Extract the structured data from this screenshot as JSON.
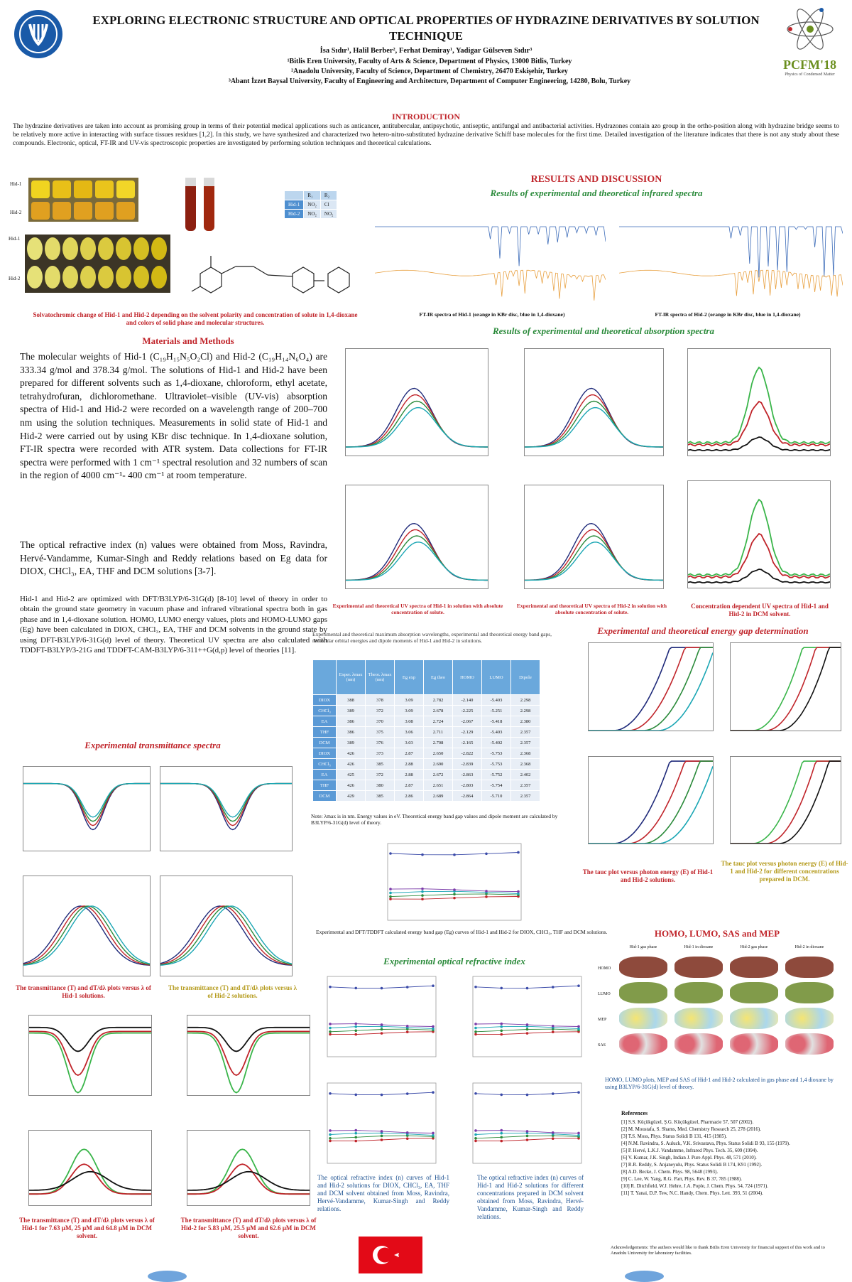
{
  "header": {
    "title": "EXPLORING ELECTRONIC STRUCTURE AND OPTICAL PROPERTIES OF HYDRAZINE DERIVATIVES BY SOLUTION TECHNIQUE",
    "authors": "İsa Sıdır¹, Halil Berber², Ferhat Demiray¹, Yadigar Gülseven Sıdır³",
    "affiliations": [
      "¹Bitlis Eren University, Faculty of Arts & Science, Department of Physics, 13000 Bitlis, Turkey",
      "²Anadolu University, Faculty of Science, Department of Chemistry, 26470 Eskişehir, Turkey",
      "³Abant İzzet Baysal University, Faculty of Engineering and Architecture, Department of Computer Engineering, 14280, Bolu, Turkey"
    ],
    "conference_logo_text": "PCFM'18",
    "conference_logo_sub": "Physics of Condensed Matter"
  },
  "introduction": {
    "heading": "INTRODUCTION",
    "text": "The hydrazine derivatives are taken into account as promising group in terms of their potential medical applications such as anticancer, antitubercular, antipsychotic, antiseptic, antifungal and antibacterial activities. Hydrazones contain azo group in the ortho-position along with hydrazine bridge seems to be relatively more active in interacting with surface tissues residues [1,2]. In this study, we have synthesized and characterized two hetero-nitro-substituted hydrazine derivative Schiff base molecules for the first time. Detailed investigation of the literature indicates that there is not any study about these compounds. Electronic, optical, FT-IR and UV-vis spectroscopic properties are investigated by performing solution techniques and theoretical calculations."
  },
  "solvato": {
    "caption": "Solvatochromic change of Hid-1 and Hid-2 depending on the solvent polarity and concentration of solute in 1,4-dioxane and colors of solid phase and molecular structures.",
    "row_labels": [
      "Hid-1",
      "Hid-2"
    ],
    "rtable": {
      "header": [
        "",
        "R₁",
        "R₂"
      ],
      "rows": [
        [
          "Hid-1",
          "NO₂",
          "Cl"
        ],
        [
          "Hid-2",
          "NO₂",
          "NO₂"
        ]
      ]
    }
  },
  "materials": {
    "heading": "Materials and Methods",
    "p1": "The molecular weights of Hid-1 (C₁₉H₁₅N₅O₂Cl) and Hid-2 (C₁₉H₁₄N₆O₄) are 333.34 g/mol and 378.34 g/mol. The solutions of Hid-1 and Hid-2 have been prepared for different solvents such as 1,4-dioxane, chloroform, ethyl acetate, tetrahydrofuran, dichloromethane. Ultraviolet–visible (UV-vis) absorption spectra of Hid-1 and Hid-2 were recorded on a wavelength range of 200–700 nm using the solution techniques. Measurements in solid state of Hid-1 and Hid-2 were carried out by using KBr disc technique. In 1,4-dioxane solution, FT-IR spectra were recorded with ATR system. Data collections for FT-IR spectra were performed with 1 cm⁻¹ spectral resolution and 32 numbers of scan in the region of 4000 cm⁻¹- 400 cm⁻¹ at room temperature.",
    "p2": "The optical refractive index (n) values were obtained from Moss, Ravindra, Hervé-Vandamme, Kumar-Singh and Reddy relations based on Eg data for DIOX, CHCl₃, EA, THF and DCM solutions [3-7].",
    "p3": "Hid-1 and Hid-2 are optimized with DFT/B3LYP/6-31G(d) [8-10] level of theory in order to obtain the ground state geometry in vacuum phase and infrared vibrational spectra both in gas phase and in 1,4-dioxane solution. HOMO, LUMO energy values, plots and HOMO-LUMO gaps (Eg) have been calculated in DIOX, CHCl₃, EA, THF and DCM solvents in the ground state by using DFT-B3LYP/6-31G(d) level of theory. Theoretical UV spectra are also calculated with TDDFT-B3LYP/3-21G and TDDFT-CAM-B3LYP/6-311++G(d,p) level of theories [11]."
  },
  "transmittance": {
    "heading": "Experimental transmittance spectra",
    "cap1": "The transmittance (T) and dT/dλ plots versus λ of Hid-1 solutions.",
    "cap2": "The transmittance (T) and dT/dλ plots versus λ of Hid-2 solutions.",
    "cap3": "The transmittance (T) and dT/dλ plots versus λ of Hid-1 for 7.63 µM, 25 µM and 64.8 µM in DCM solvent.",
    "cap4": "The transmittance (T) and dT/dλ plots versus λ of Hid-2 for 5.83 µM, 25.5 µM and 62.6 µM in DCM solvent."
  },
  "results": {
    "heading": "RESULTS AND DISCUSSION",
    "ir_heading": "Results of experimental and theoretical infrared spectra",
    "ir_cap1": "FT-IR spectra of Hid-1 (orange in KBr disc, blue in 1,4-dioxane)",
    "ir_cap2": "FT-IR spectra of Hid-2 (orange in KBr disc, blue in 1,4-dioxane)",
    "abs_heading": "Results of experimental and theoretical absorption spectra",
    "abs_cap1": "Experimental and theoretical UV spectra of Hid-1 in solution with absolute concentration of solute.",
    "abs_cap2": "Experimental and theoretical UV spectra of Hid-2 in solution with absolute concentration of solute.",
    "abs_cap3": "Concentration dependent UV spectra of Hid-1 and Hid-2 in DCM solvent.",
    "gap_heading": "Experimental and theoretical energy gap determination",
    "gap_table_intro": "Experimental and theoretical maximum absorption wavelengths, experimental and theoretical energy band gaps, molecular orbital energies and dipole moments of Hid-1 and Hid-2 in solutions.",
    "gap_table_note": "Note: λmax is in nm. Energy values in eV. Theoretical energy band gap values and dipole moment are calculated by B3LYP/6-31G(d) level of theory.",
    "gap_chart_caption": "Experimental and DFT/TDDFT calculated energy band gap (Eg) curves of Hid-1 and Hid-2 for DIOX, CHCl₃, THF and DCM solutions.",
    "tauc_cap1": "The tauc plot versus photon energy (E) of Hid-1 and Hid-2 solutions.",
    "tauc_cap2": "The tauc plot versus photon energy (E) of Hid-1 and Hid-2 for different concentrations prepared in DCM.",
    "refr_heading": "Experimental optical refractive index",
    "refr_cap1": "The optical refractive index (n) curves of Hid-1 and Hid-2 solutions for DIOX, CHCl₃, EA, THF and DCM solvent obtained from Moss, Ravindra, Hervé-Vandamme, Kumar-Singh and Reddy relations.",
    "refr_cap2": "The optical refractive index (n) curves of Hid-1 and Hid-2 solutions for different concentrations prepared in DCM solvent obtained from Moss, Ravindra, Hervé-Vandamme, Kumar-Singh and Reddy relations.",
    "homo_heading": "HOMO, LUMO, SAS and MEP",
    "homo_cols": [
      "Hid-1 gas phase",
      "Hid-1 in dioxane",
      "Hid-2 gas phase",
      "Hid-2 in dioxane"
    ],
    "homo_rows": [
      "HOMO",
      "LUMO",
      "MEP",
      "SAS"
    ],
    "homo_cap": "HOMO, LUMO plots, MEP and SAS of Hid-1 and Hid-2 calculated in gas phase and 1,4 dioxane by using B3LYP/6-31G(d) level of theory."
  },
  "gap_table": {
    "headers": [
      "",
      "Exper. λmax (nm)",
      "Theor. λmax (nm)",
      "Eg exp",
      "Eg theo",
      "HOMO",
      "LUMO",
      "Dipole"
    ],
    "rows": [
      [
        "DIOX",
        "388",
        "378",
        "3.09",
        "2.782",
        "-2.140",
        "-5.403",
        "2.298"
      ],
      [
        "CHCl₃",
        "389",
        "372",
        "3.09",
        "2.678",
        "-2.225",
        "-5.251",
        "2.298"
      ],
      [
        "EA",
        "386",
        "370",
        "3.08",
        "2.724",
        "-2.067",
        "-5.418",
        "2.380"
      ],
      [
        "THF",
        "386",
        "375",
        "3.06",
        "2.711",
        "-2.129",
        "-5.403",
        "2.357"
      ],
      [
        "DCM",
        "389",
        "376",
        "3.03",
        "2.708",
        "-2.165",
        "-5.402",
        "2.357"
      ],
      [
        "DIOX",
        "426",
        "373",
        "2.87",
        "2.650",
        "-2.822",
        "-5.753",
        "2.368"
      ],
      [
        "CHCl₃",
        "426",
        "385",
        "2.88",
        "2.690",
        "-2.839",
        "-5.753",
        "2.368"
      ],
      [
        "EA",
        "425",
        "372",
        "2.88",
        "2.672",
        "-2.863",
        "-5.752",
        "2.402"
      ],
      [
        "THF",
        "426",
        "380",
        "2.87",
        "2.651",
        "-2.803",
        "-5.754",
        "2.357"
      ],
      [
        "DCM",
        "429",
        "385",
        "2.86",
        "2.689",
        "-2.864",
        "-5.710",
        "2.357"
      ]
    ]
  },
  "references": {
    "heading": "References",
    "items": [
      "[1] S.S. Küçükgüzel, Ş.G. Küçükgüzel, Pharmazie 57, 507 (2002).",
      "[2] M. Moustafa, S. Shams, Med. Chemistry Research 25, 278 (2016).",
      "[3] T.S. Moss, Phys. Status Solidi B 131, 415 (1985).",
      "[4] N.M. Ravindra, S. Auluck, V.K. Srivastava, Phys. Status Solidi B 93, 155 (1979).",
      "[5] P. Hervé, L.K.J. Vandamme, Infrared Phys. Tech. 35, 609 (1994).",
      "[6] V. Kumar, J.K. Singh, Indian J. Pure Appl. Phys. 48, 571 (2010).",
      "[7] R.R. Reddy, S. Anjaneyulu, Phys. Status Solidi B 174, K91 (1992).",
      "[8] A.D. Becke, J. Chem. Phys. 98, 5648 (1993).",
      "[9] C. Lee, W. Yang, R.G. Parr, Phys. Rev. B 37, 785 (1988).",
      "[10] R. Ditchfield, W.J. Hehre, J.A. Pople, J. Chem. Phys. 54, 724 (1971).",
      "[11] T. Yanai, D.P. Tew, N.C. Handy, Chem. Phys. Lett. 393, 51 (2004)."
    ],
    "ack": "Acknowledgements: The authors would like to thank Bitlis Eren University for financial support of this work and to Anadolu University for laboratory facilities."
  },
  "colors": {
    "red": "#c0242a",
    "green": "#2a8a3a",
    "blue": "#4e8fd0",
    "olive": "#b49a1b"
  },
  "icons": [
    "university-logo",
    "pcfm-atom-logo",
    "turkish-flag"
  ]
}
